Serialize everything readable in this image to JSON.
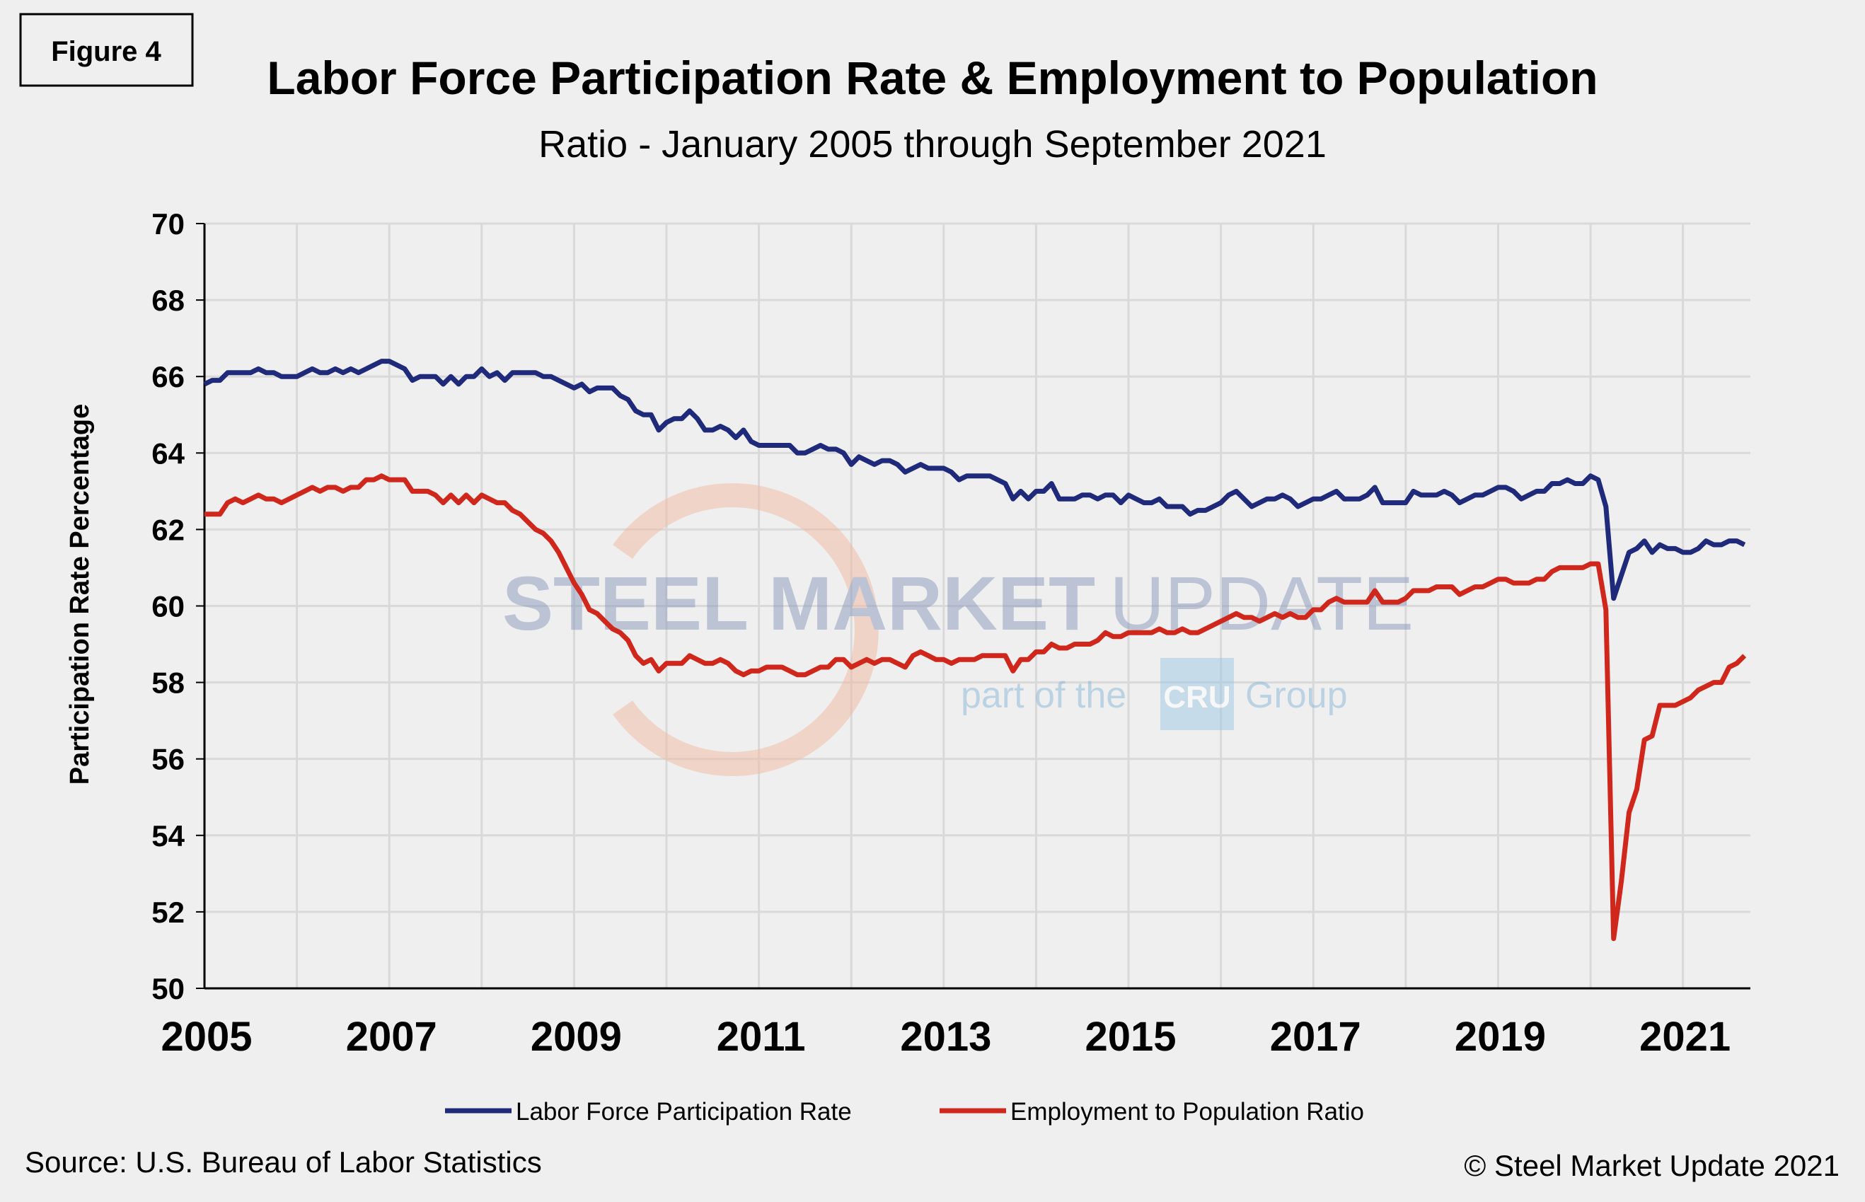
{
  "figure_label": "Figure 4",
  "source": "Source: U.S. Bureau  of Labor Statistics",
  "copyright": "© Steel Market Update 2021",
  "watermark": {
    "line1_bold": "STEEL MARKET",
    "line1_light": "UPDATE",
    "line2": "part of the",
    "badge": "CRU",
    "line2_end": "Group"
  },
  "colors": {
    "lfpr": "#1f2a7a",
    "emratio": "#d0271d",
    "grid": "#d9d9d9",
    "background": "#efefef"
  },
  "chart_data": {
    "type": "line",
    "title": "Labor Force Participation Rate & Employment to Population",
    "subtitle": "Ratio - January 2005 through September 2021",
    "xlabel": "",
    "ylabel": "Participation Rate Percentage",
    "ylim": [
      50,
      70
    ],
    "yticks": [
      "50",
      "52",
      "54",
      "56",
      "58",
      "60",
      "62",
      "64",
      "66",
      "68",
      "70"
    ],
    "xticks": [
      "2005",
      "2007",
      "2009",
      "2011",
      "2013",
      "2015",
      "2017",
      "2019",
      "2021"
    ],
    "x_start": "2005-01",
    "x_end": "2021-09",
    "frequency": "monthly",
    "grid": true,
    "legend_position": "bottom",
    "series": [
      {
        "name": "Labor Force Participation Rate",
        "values": [
          65.8,
          65.9,
          65.9,
          66.1,
          66.1,
          66.1,
          66.1,
          66.2,
          66.1,
          66.1,
          66.0,
          66.0,
          66.0,
          66.1,
          66.2,
          66.1,
          66.1,
          66.2,
          66.1,
          66.2,
          66.1,
          66.2,
          66.3,
          66.4,
          66.4,
          66.3,
          66.2,
          65.9,
          66.0,
          66.0,
          66.0,
          65.8,
          66.0,
          65.8,
          66.0,
          66.0,
          66.2,
          66.0,
          66.1,
          65.9,
          66.1,
          66.1,
          66.1,
          66.1,
          66.0,
          66.0,
          65.9,
          65.8,
          65.7,
          65.8,
          65.6,
          65.7,
          65.7,
          65.7,
          65.5,
          65.4,
          65.1,
          65.0,
          65.0,
          64.6,
          64.8,
          64.9,
          64.9,
          65.1,
          64.9,
          64.6,
          64.6,
          64.7,
          64.6,
          64.4,
          64.6,
          64.3,
          64.2,
          64.2,
          64.2,
          64.2,
          64.2,
          64.0,
          64.0,
          64.1,
          64.2,
          64.1,
          64.1,
          64.0,
          63.7,
          63.9,
          63.8,
          63.7,
          63.8,
          63.8,
          63.7,
          63.5,
          63.6,
          63.7,
          63.6,
          63.6,
          63.6,
          63.5,
          63.3,
          63.4,
          63.4,
          63.4,
          63.4,
          63.3,
          63.2,
          62.8,
          63.0,
          62.8,
          63.0,
          63.0,
          63.2,
          62.8,
          62.8,
          62.8,
          62.9,
          62.9,
          62.8,
          62.9,
          62.9,
          62.7,
          62.9,
          62.8,
          62.7,
          62.7,
          62.8,
          62.6,
          62.6,
          62.6,
          62.4,
          62.5,
          62.5,
          62.6,
          62.7,
          62.9,
          63.0,
          62.8,
          62.6,
          62.7,
          62.8,
          62.8,
          62.9,
          62.8,
          62.6,
          62.7,
          62.8,
          62.8,
          62.9,
          63.0,
          62.8,
          62.8,
          62.8,
          62.9,
          63.1,
          62.7,
          62.7,
          62.7,
          62.7,
          63.0,
          62.9,
          62.9,
          62.9,
          63.0,
          62.9,
          62.7,
          62.8,
          62.9,
          62.9,
          63.0,
          63.1,
          63.1,
          63.0,
          62.8,
          62.9,
          63.0,
          63.0,
          63.2,
          63.2,
          63.3,
          63.2,
          63.2,
          63.4,
          63.3,
          62.6,
          60.2,
          60.8,
          61.4,
          61.5,
          61.7,
          61.4,
          61.6,
          61.5,
          61.5,
          61.4,
          61.4,
          61.5,
          61.7,
          61.6,
          61.6,
          61.7,
          61.7,
          61.6
        ]
      },
      {
        "name": "Employment to Population Ratio",
        "values": [
          62.4,
          62.4,
          62.4,
          62.7,
          62.8,
          62.7,
          62.8,
          62.9,
          62.8,
          62.8,
          62.7,
          62.8,
          62.9,
          63.0,
          63.1,
          63.0,
          63.1,
          63.1,
          63.0,
          63.1,
          63.1,
          63.3,
          63.3,
          63.4,
          63.3,
          63.3,
          63.3,
          63.0,
          63.0,
          63.0,
          62.9,
          62.7,
          62.9,
          62.7,
          62.9,
          62.7,
          62.9,
          62.8,
          62.7,
          62.7,
          62.5,
          62.4,
          62.2,
          62.0,
          61.9,
          61.7,
          61.4,
          61.0,
          60.6,
          60.3,
          59.9,
          59.8,
          59.6,
          59.4,
          59.3,
          59.1,
          58.7,
          58.5,
          58.6,
          58.3,
          58.5,
          58.5,
          58.5,
          58.7,
          58.6,
          58.5,
          58.5,
          58.6,
          58.5,
          58.3,
          58.2,
          58.3,
          58.3,
          58.4,
          58.4,
          58.4,
          58.3,
          58.2,
          58.2,
          58.3,
          58.4,
          58.4,
          58.6,
          58.6,
          58.4,
          58.5,
          58.6,
          58.5,
          58.6,
          58.6,
          58.5,
          58.4,
          58.7,
          58.8,
          58.7,
          58.6,
          58.6,
          58.5,
          58.6,
          58.6,
          58.6,
          58.7,
          58.7,
          58.7,
          58.7,
          58.3,
          58.6,
          58.6,
          58.8,
          58.8,
          59.0,
          58.9,
          58.9,
          59.0,
          59.0,
          59.0,
          59.1,
          59.3,
          59.2,
          59.2,
          59.3,
          59.3,
          59.3,
          59.3,
          59.4,
          59.3,
          59.3,
          59.4,
          59.3,
          59.3,
          59.4,
          59.5,
          59.6,
          59.7,
          59.8,
          59.7,
          59.7,
          59.6,
          59.7,
          59.8,
          59.7,
          59.8,
          59.7,
          59.7,
          59.9,
          59.9,
          60.1,
          60.2,
          60.1,
          60.1,
          60.1,
          60.1,
          60.4,
          60.1,
          60.1,
          60.1,
          60.2,
          60.4,
          60.4,
          60.4,
          60.5,
          60.5,
          60.5,
          60.3,
          60.4,
          60.5,
          60.5,
          60.6,
          60.7,
          60.7,
          60.6,
          60.6,
          60.6,
          60.7,
          60.7,
          60.9,
          61.0,
          61.0,
          61.0,
          61.0,
          61.1,
          61.1,
          59.9,
          51.3,
          52.8,
          54.6,
          55.2,
          56.5,
          56.6,
          57.4,
          57.4,
          57.4,
          57.5,
          57.6,
          57.8,
          57.9,
          58.0,
          58.0,
          58.4,
          58.5,
          58.7
        ]
      }
    ]
  }
}
